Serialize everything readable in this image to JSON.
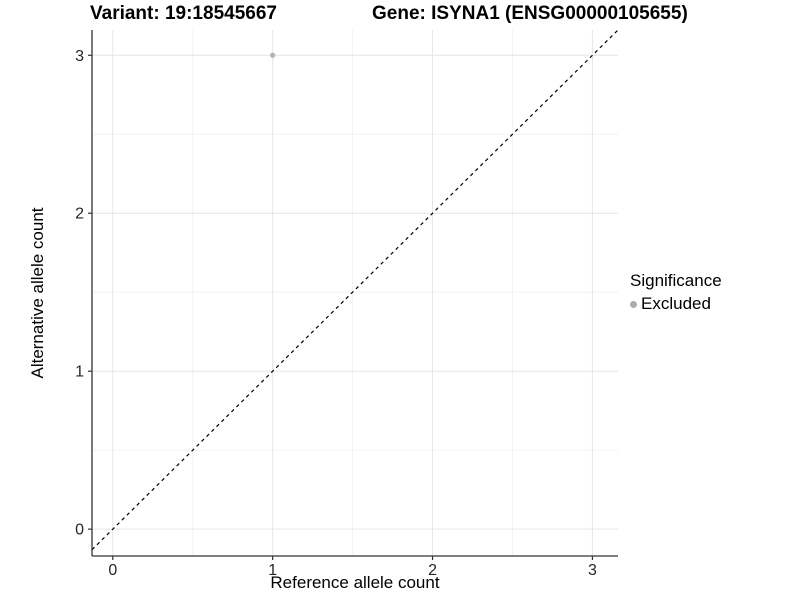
{
  "chart_data": {
    "type": "scatter",
    "title_left": "Variant: 19:18545667",
    "title_right": "Gene: ISYNA1 (ENSG00000105655)",
    "xlabel": "Reference allele count",
    "ylabel": "Alternative allele count",
    "xlim": [
      -0.13,
      3.16
    ],
    "ylim": [
      -0.17,
      3.16
    ],
    "xticks": [
      0,
      1,
      2,
      3
    ],
    "yticks": [
      0,
      1,
      2,
      3
    ],
    "minor_ticks": [
      0.5,
      1.5,
      2.5
    ],
    "grid": true,
    "points": [
      {
        "x": 1,
        "y": 3,
        "significance": "Excluded"
      }
    ],
    "reference_line": {
      "slope": 1,
      "intercept": 0,
      "style": "dashed"
    },
    "legend": {
      "title": "Significance",
      "position": "right",
      "items": [
        {
          "label": "Excluded",
          "color": "#ababab",
          "marker": "circle"
        }
      ]
    },
    "colors": {
      "point": "#b3b3b3",
      "grid_major": "#e6e6e6",
      "grid_minor": "#f2f2f2",
      "axis": "#333333",
      "tick_text": "#262626",
      "reference_line": "#000000"
    }
  }
}
